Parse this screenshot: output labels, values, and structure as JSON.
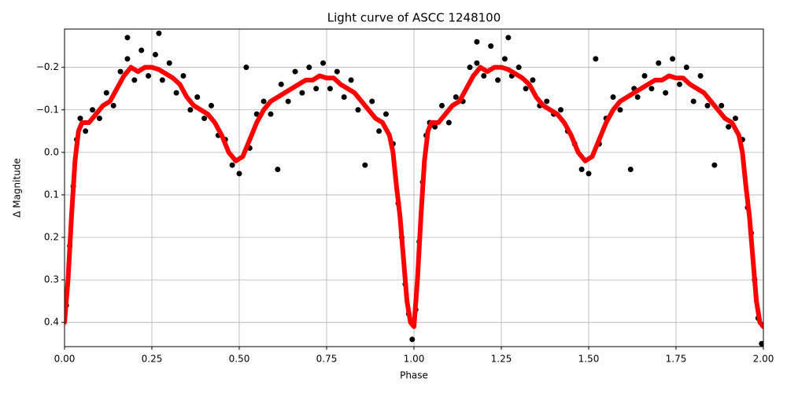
{
  "chart_data": {
    "type": "scatter",
    "title": "Light curve of ASCC 1248100",
    "x_label": "Phase",
    "y_label": "Δ Magnitude",
    "xlim": [
      0,
      2
    ],
    "ylim": [
      -0.29,
      0.457
    ],
    "invert_y": true,
    "grid": true,
    "xticks": [
      {
        "value": 0,
        "label": "0.00"
      },
      {
        "value": 0.25,
        "label": "0.25"
      },
      {
        "value": 0.5,
        "label": "0.50"
      },
      {
        "value": 0.75,
        "label": "0.75"
      },
      {
        "value": 1,
        "label": "1.00"
      },
      {
        "value": 1.25,
        "label": "1.25"
      },
      {
        "value": 1.5,
        "label": "1.50"
      },
      {
        "value": 1.75,
        "label": "1.75"
      },
      {
        "value": 2,
        "label": "2.00"
      }
    ],
    "yticks": [
      {
        "value": -0.2,
        "label": "−0.2"
      },
      {
        "value": -0.1,
        "label": "−0.1"
      },
      {
        "value": 0,
        "label": "0.0"
      },
      0.1,
      0.2,
      0.3,
      0.4
    ],
    "series": [
      {
        "kind": "points",
        "color": "#000000",
        "x": [
          0.005,
          0.015,
          0.025,
          0.035,
          0.045,
          0.06,
          0.08,
          0.1,
          0.12,
          0.14,
          0.16,
          0.18,
          0.2,
          0.22,
          0.24,
          0.26,
          0.28,
          0.3,
          0.32,
          0.34,
          0.36,
          0.38,
          0.4,
          0.42,
          0.44,
          0.46,
          0.48,
          0.5,
          0.52,
          0.53,
          0.55,
          0.57,
          0.59,
          0.61,
          0.62,
          0.64,
          0.66,
          0.68,
          0.7,
          0.72,
          0.74,
          0.76,
          0.78,
          0.8,
          0.82,
          0.84,
          0.86,
          0.88,
          0.9,
          0.92,
          0.94,
          0.955,
          0.965,
          0.975,
          0.985,
          0.995,
          0.27,
          0.18,
          1.005,
          1.015,
          1.025,
          1.035,
          1.045,
          1.06,
          1.08,
          1.1,
          1.12,
          1.14,
          1.16,
          1.18,
          1.2,
          1.22,
          1.24,
          1.26,
          1.28,
          1.3,
          1.32,
          1.34,
          1.36,
          1.38,
          1.4,
          1.42,
          1.44,
          1.46,
          1.48,
          1.5,
          1.52,
          1.53,
          1.55,
          1.57,
          1.59,
          1.62,
          1.63,
          1.64,
          1.66,
          1.68,
          1.7,
          1.72,
          1.74,
          1.76,
          1.78,
          1.8,
          1.82,
          1.84,
          1.86,
          1.88,
          1.9,
          1.92,
          1.94,
          1.955,
          1.965,
          1.975,
          1.985,
          1.995,
          1.27,
          1.18
        ],
        "values": [
          0.36,
          0.22,
          0.08,
          -0.03,
          -0.08,
          -0.05,
          -0.1,
          -0.08,
          -0.14,
          -0.11,
          -0.19,
          -0.22,
          -0.17,
          -0.24,
          -0.18,
          -0.23,
          -0.17,
          -0.21,
          -0.14,
          -0.18,
          -0.1,
          -0.13,
          -0.08,
          -0.11,
          -0.04,
          -0.03,
          0.03,
          0.05,
          -0.2,
          -0.01,
          -0.09,
          -0.12,
          -0.09,
          0.04,
          -0.16,
          -0.12,
          -0.19,
          -0.14,
          -0.2,
          -0.15,
          -0.21,
          -0.15,
          -0.19,
          -0.13,
          -0.17,
          -0.1,
          0.03,
          -0.12,
          -0.05,
          -0.09,
          -0.02,
          0.12,
          0.2,
          0.31,
          0.38,
          0.44,
          -0.28,
          -0.27,
          0.37,
          0.21,
          0.07,
          -0.04,
          -0.07,
          -0.06,
          -0.11,
          -0.07,
          -0.13,
          -0.12,
          -0.2,
          -0.21,
          -0.18,
          -0.25,
          -0.17,
          -0.22,
          -0.18,
          -0.2,
          -0.15,
          -0.17,
          -0.11,
          -0.12,
          -0.09,
          -0.1,
          -0.05,
          -0.02,
          0.04,
          0.05,
          -0.22,
          -0.02,
          -0.08,
          -0.13,
          -0.1,
          0.04,
          -0.15,
          -0.13,
          -0.18,
          -0.15,
          -0.21,
          -0.14,
          -0.22,
          -0.16,
          -0.2,
          -0.12,
          -0.18,
          -0.11,
          0.03,
          -0.11,
          -0.06,
          -0.08,
          -0.03,
          0.13,
          0.19,
          0.3,
          0.39,
          0.45,
          -0.27,
          -0.26
        ]
      },
      {
        "kind": "line",
        "color": "#ff0000",
        "x": [
          0,
          0.01,
          0.02,
          0.03,
          0.04,
          0.05,
          0.07,
          0.09,
          0.11,
          0.13,
          0.15,
          0.17,
          0.19,
          0.21,
          0.23,
          0.25,
          0.27,
          0.29,
          0.31,
          0.33,
          0.35,
          0.37,
          0.39,
          0.41,
          0.43,
          0.45,
          0.47,
          0.49,
          0.51,
          0.53,
          0.55,
          0.57,
          0.59,
          0.61,
          0.63,
          0.65,
          0.67,
          0.69,
          0.71,
          0.73,
          0.75,
          0.77,
          0.79,
          0.81,
          0.83,
          0.85,
          0.87,
          0.89,
          0.91,
          0.93,
          0.94,
          0.95,
          0.96,
          0.97,
          0.98,
          0.99,
          1.0,
          1.01,
          1.02,
          1.03,
          1.04,
          1.05,
          1.07,
          1.09,
          1.11,
          1.13,
          1.15,
          1.17,
          1.19,
          1.21,
          1.23,
          1.25,
          1.27,
          1.29,
          1.31,
          1.33,
          1.35,
          1.37,
          1.39,
          1.41,
          1.43,
          1.45,
          1.47,
          1.49,
          1.51,
          1.53,
          1.55,
          1.57,
          1.59,
          1.61,
          1.63,
          1.65,
          1.67,
          1.69,
          1.71,
          1.73,
          1.75,
          1.77,
          1.79,
          1.81,
          1.83,
          1.85,
          1.87,
          1.89,
          1.91,
          1.93,
          1.94,
          1.95,
          1.96,
          1.97,
          1.98,
          1.99,
          2.0
        ],
        "values": [
          0.4,
          0.3,
          0.15,
          0.02,
          -0.05,
          -0.07,
          -0.07,
          -0.09,
          -0.11,
          -0.12,
          -0.15,
          -0.18,
          -0.2,
          -0.19,
          -0.2,
          -0.2,
          -0.195,
          -0.185,
          -0.175,
          -0.16,
          -0.13,
          -0.11,
          -0.1,
          -0.09,
          -0.07,
          -0.04,
          0.0,
          0.02,
          0.01,
          -0.03,
          -0.07,
          -0.1,
          -0.12,
          -0.13,
          -0.14,
          -0.15,
          -0.16,
          -0.17,
          -0.17,
          -0.18,
          -0.175,
          -0.175,
          -0.16,
          -0.15,
          -0.14,
          -0.12,
          -0.1,
          -0.08,
          -0.07,
          -0.04,
          0.0,
          0.08,
          0.15,
          0.25,
          0.35,
          0.4,
          0.41,
          0.3,
          0.15,
          0.02,
          -0.05,
          -0.07,
          -0.07,
          -0.09,
          -0.11,
          -0.12,
          -0.15,
          -0.18,
          -0.2,
          -0.19,
          -0.2,
          -0.2,
          -0.195,
          -0.185,
          -0.175,
          -0.16,
          -0.13,
          -0.11,
          -0.1,
          -0.09,
          -0.07,
          -0.04,
          0.0,
          0.02,
          0.01,
          -0.03,
          -0.07,
          -0.1,
          -0.12,
          -0.13,
          -0.14,
          -0.15,
          -0.16,
          -0.17,
          -0.17,
          -0.18,
          -0.175,
          -0.175,
          -0.16,
          -0.15,
          -0.14,
          -0.12,
          -0.1,
          -0.08,
          -0.07,
          -0.04,
          0.0,
          0.08,
          0.15,
          0.25,
          0.35,
          0.4,
          0.41
        ]
      }
    ]
  }
}
